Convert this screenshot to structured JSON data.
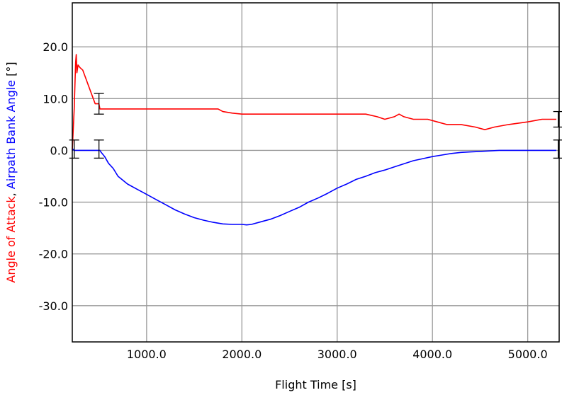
{
  "chart_data": {
    "type": "line",
    "xlabel": "Flight Time [s]",
    "ylabel_parts": [
      {
        "text": "Angle of Attack",
        "color": "#ff0000"
      },
      {
        "text": ", ",
        "color": "#000000"
      },
      {
        "text": "Airpath Bank Angle",
        "color": "#0000ff"
      },
      {
        "text": " [°]",
        "color": "#000000"
      }
    ],
    "xlim": [
      220,
      5330
    ],
    "ylim": [
      -37,
      28.5
    ],
    "xticks": [
      1000,
      2000,
      3000,
      4000,
      5000
    ],
    "xtick_labels": [
      "1000.0",
      "2000.0",
      "3000.0",
      "4000.0",
      "5000.0"
    ],
    "yticks": [
      20,
      10,
      0,
      -10,
      -20,
      -30
    ],
    "ytick_labels": [
      "20.0",
      "10.0",
      "0.0",
      "-10.0",
      "-20.0",
      "-30.0"
    ],
    "grid": true,
    "series": [
      {
        "color": "#ff0000",
        "x": [
          220,
          240,
          255,
          262,
          268,
          280,
          300,
          330,
          360,
          400,
          440,
          460,
          470,
          480,
          490,
          495,
          500,
          505,
          510,
          560,
          1000,
          1500,
          1750,
          1800,
          1900,
          2000,
          2500,
          3000,
          3300,
          3420,
          3500,
          3600,
          3650,
          3700,
          3800,
          3950,
          4050,
          4150,
          4300,
          4450,
          4550,
          4650,
          4800,
          5000,
          5150,
          5300
        ],
        "y": [
          0,
          8,
          17,
          18.5,
          15,
          16.5,
          16,
          15.5,
          14,
          12,
          10,
          9,
          9,
          9,
          9,
          9,
          9,
          8.5,
          8,
          8,
          8,
          8,
          8,
          7.5,
          7.2,
          7,
          7,
          7,
          7,
          6.5,
          6,
          6.5,
          7,
          6.5,
          6,
          6,
          5.5,
          5,
          5,
          4.5,
          4,
          4.5,
          5,
          5.5,
          6,
          6
        ]
      },
      {
        "color": "#0000ff",
        "x": [
          220,
          230,
          240,
          300,
          400,
          500,
          510,
          520,
          560,
          600,
          650,
          700,
          800,
          900,
          1000,
          1100,
          1200,
          1300,
          1400,
          1500,
          1600,
          1700,
          1800,
          1900,
          2000,
          2050,
          2100,
          2200,
          2300,
          2400,
          2500,
          2600,
          2700,
          2800,
          2900,
          3000,
          3100,
          3200,
          3300,
          3400,
          3500,
          3600,
          3700,
          3800,
          3900,
          4000,
          4100,
          4200,
          4300,
          4400,
          4500,
          4600,
          4700,
          4800,
          5000,
          5200,
          5300
        ],
        "y": [
          0,
          0.2,
          0,
          0,
          0,
          0,
          0,
          -0.3,
          -1.2,
          -2.5,
          -3.5,
          -5,
          -6.5,
          -7.5,
          -8.5,
          -9.5,
          -10.5,
          -11.5,
          -12.3,
          -13,
          -13.5,
          -13.9,
          -14.2,
          -14.3,
          -14.3,
          -14.4,
          -14.3,
          -13.8,
          -13.3,
          -12.6,
          -11.8,
          -11,
          -10,
          -9.2,
          -8.3,
          -7.3,
          -6.5,
          -5.6,
          -5,
          -4.3,
          -3.8,
          -3.2,
          -2.6,
          -2,
          -1.6,
          -1.2,
          -0.9,
          -0.6,
          -0.4,
          -0.3,
          -0.2,
          -0.1,
          0,
          0,
          0,
          0,
          0
        ]
      }
    ],
    "error_bars": [
      {
        "x": 240,
        "low": -1.5,
        "high": 2,
        "color": "#000000"
      },
      {
        "x": 500,
        "low": -1.5,
        "high": 2,
        "color": "#000000"
      },
      {
        "x": 500,
        "low": 7,
        "high": 11,
        "color": "#000000"
      },
      {
        "x": 5320,
        "low": 4.5,
        "high": 7.5,
        "color": "#000000"
      },
      {
        "x": 5320,
        "low": -1.5,
        "high": 2,
        "color": "#000000"
      }
    ]
  }
}
